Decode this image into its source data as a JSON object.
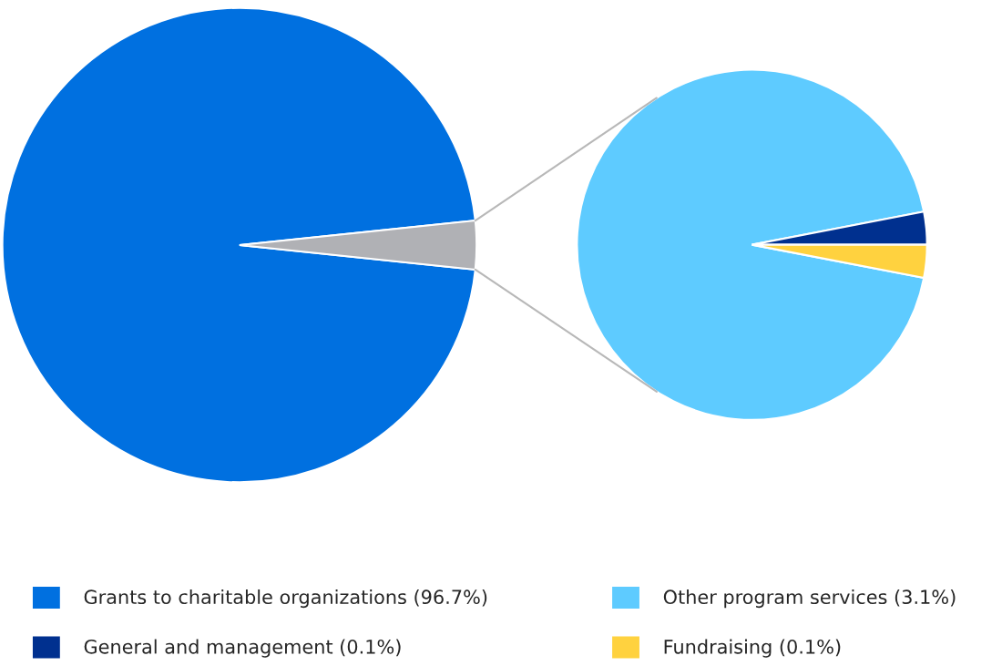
{
  "chart_data": [
    {
      "type": "pie",
      "categories": [
        "Grants to charitable organizations (96.7%)",
        null
      ],
      "values": [
        96.7,
        3.3
      ],
      "colors": [
        "#0070e0",
        "#b0b1b5"
      ],
      "legend": "bottom"
    },
    {
      "type": "pie",
      "categories": [
        "Other program services (3.1%)",
        "General and management (0.1%)",
        "Fundraising (0.1%)"
      ],
      "values": [
        3.1,
        0.1,
        0.1
      ],
      "colors": [
        "#5ecbff",
        "#00308f",
        "#ffd23f"
      ],
      "legend": "bottom"
    }
  ]
}
